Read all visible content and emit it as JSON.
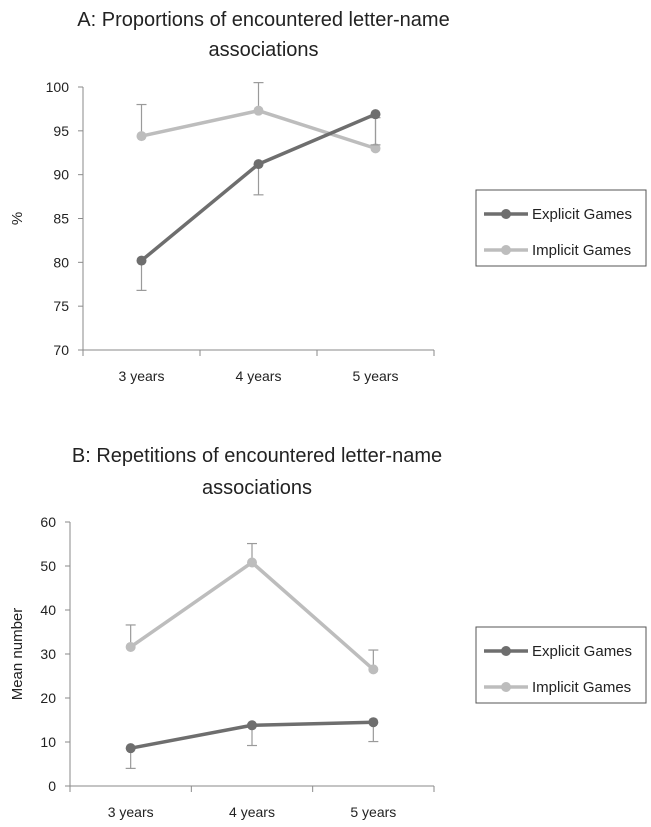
{
  "chart_data": [
    {
      "type": "line",
      "title_lines": [
        "A: Proportions of encountered letter-name",
        "associations"
      ],
      "ylabel": "%",
      "xlabel": "",
      "categories": [
        "3 years",
        "4 years",
        "5 years"
      ],
      "ylim": [
        70,
        100
      ],
      "yticks": [
        70,
        75,
        80,
        85,
        90,
        95,
        100
      ],
      "grid": false,
      "legend_position": "right",
      "series": [
        {
          "name": "Explicit Games",
          "values": [
            80.2,
            91.2,
            96.9
          ],
          "error": [
            3.4,
            3.5,
            3.5
          ],
          "color": "#6e6e6e"
        },
        {
          "name": "Implicit Games",
          "values": [
            94.4,
            97.3,
            93.0
          ],
          "error": [
            3.6,
            3.2,
            3.5
          ],
          "color": "#bdbdbd"
        }
      ]
    },
    {
      "type": "line",
      "title_lines": [
        "B: Repetitions of encountered letter-name",
        "associations"
      ],
      "ylabel": "Mean number",
      "xlabel": "",
      "categories": [
        "3 years",
        "4 years",
        "5 years"
      ],
      "ylim": [
        0,
        60
      ],
      "yticks": [
        0,
        10,
        20,
        30,
        40,
        50,
        60
      ],
      "grid": false,
      "legend_position": "right",
      "series": [
        {
          "name": "Explicit Games",
          "values": [
            8.6,
            13.8,
            14.5
          ],
          "error": [
            4.6,
            4.6,
            4.4
          ],
          "color": "#6e6e6e"
        },
        {
          "name": "Implicit Games",
          "values": [
            31.6,
            50.8,
            26.5
          ],
          "error": [
            5.0,
            4.3,
            4.4
          ],
          "color": "#bdbdbd"
        }
      ]
    }
  ]
}
